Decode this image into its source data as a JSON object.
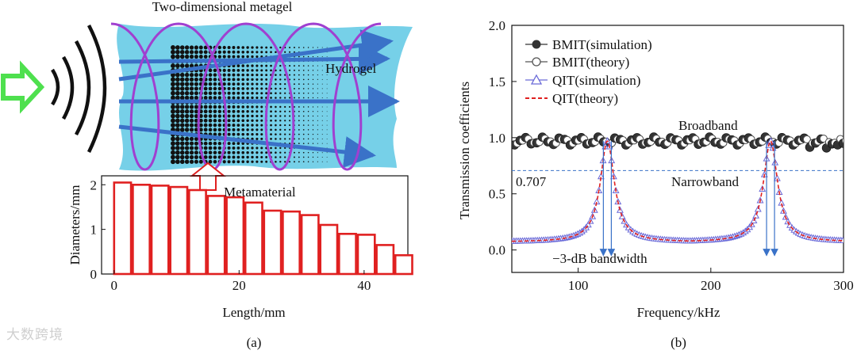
{
  "figure_a": {
    "title": "Two-dimensional metagel",
    "hydrogel_label": "Hydrogel",
    "metamaterial_label": "Metamaterial",
    "caption": "(a)",
    "source_arrow_color": "#4ee04e",
    "hydrogel_color": "#5ec8e4",
    "wave_color": "#a040d0"
  },
  "figure_b": {
    "caption": "(b)",
    "annotations": {
      "broadband": "Broadband",
      "narrowband": "Narrowband",
      "threshold": "0.707",
      "bandwidth": "−3-dB bandwidth"
    }
  },
  "watermark": "大数跨境",
  "chart_data": [
    {
      "type": "bar",
      "id": "diameter-chart",
      "xlabel": "Length/mm",
      "ylabel": "Diameters/mm",
      "xlim": [
        -2,
        47
      ],
      "ylim": [
        0,
        2.2
      ],
      "xticks": [
        0,
        20,
        40
      ],
      "yticks": [
        0,
        1,
        2
      ],
      "bar_color": "#e02020",
      "bar_width_mm": 2.7,
      "x": [
        0,
        3,
        6,
        9,
        12,
        15,
        18,
        21,
        24,
        27,
        30,
        33,
        36,
        39,
        42,
        45
      ],
      "values": [
        2.05,
        2.0,
        1.98,
        1.95,
        1.88,
        1.75,
        1.72,
        1.6,
        1.42,
        1.4,
        1.32,
        1.1,
        0.9,
        0.88,
        0.65,
        0.42
      ]
    },
    {
      "type": "line",
      "id": "transmission-chart",
      "xlabel": "Frequency/kHz",
      "ylabel": "Transmission coefficients",
      "xlim": [
        50,
        300
      ],
      "ylim": [
        -0.2,
        2.0
      ],
      "xticks": [
        100,
        200,
        300
      ],
      "yticks": [
        0.0,
        0.5,
        1.0,
        1.5,
        2.0
      ],
      "reference_line": 0.707,
      "series": [
        {
          "name": "BMIT(simulation)",
          "marker": "filled-circle",
          "color": "#333333",
          "mean": 0.97
        },
        {
          "name": "BMIT(theory)",
          "marker": "open-circle",
          "color": "#555555",
          "mean": 0.97
        },
        {
          "name": "QIT(simulation)",
          "marker": "open-triangle",
          "color": "#6a6ad8",
          "peaks_kHz": [
            122,
            245
          ],
          "peak_value": 0.97,
          "baseline": 0.07
        },
        {
          "name": "QIT(theory)",
          "marker": "dashed-line",
          "color": "#e02020",
          "peaks_kHz": [
            122,
            245
          ],
          "peak_value": 0.97,
          "baseline": 0.07
        }
      ],
      "bandwidth_markers_kHz": [
        [
          119,
          125
        ],
        [
          242,
          248
        ]
      ]
    }
  ]
}
